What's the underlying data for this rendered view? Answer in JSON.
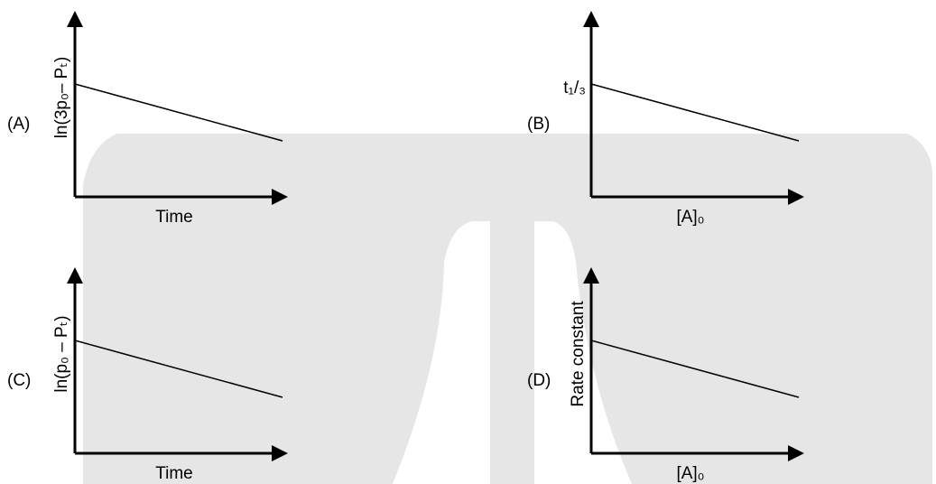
{
  "panels": [
    {
      "label": "(A)",
      "y_label": "ln(3p₀– Pₜ)",
      "x_label": "Time"
    },
    {
      "label": "(B)",
      "y_label": "",
      "intercept_label": "t₁/₃",
      "x_label": "[A]₀"
    },
    {
      "label": "(C)",
      "y_label": "ln(p₀ – Pₜ)",
      "x_label": "Time"
    },
    {
      "label": "(D)",
      "y_label": "Rate constant",
      "x_label": "[A]₀"
    }
  ]
}
